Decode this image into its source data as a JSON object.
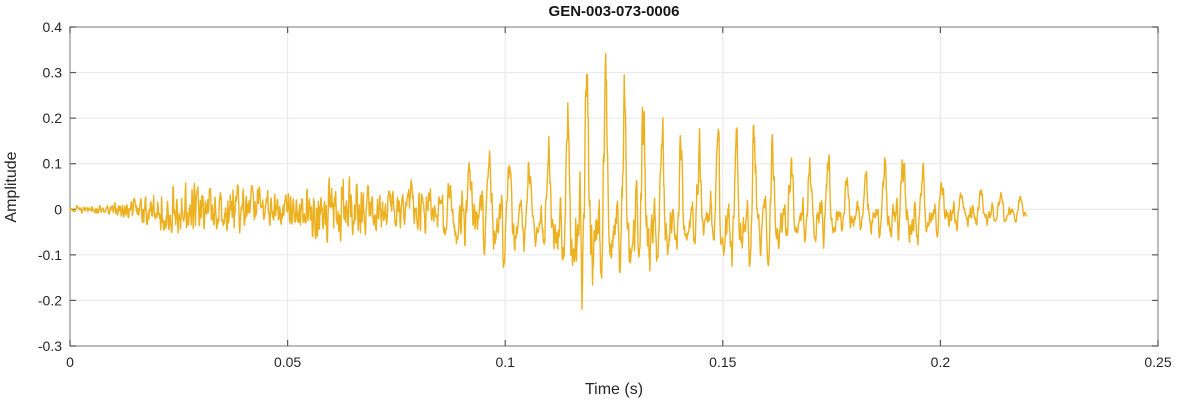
{
  "figure": {
    "title": "GEN-003-073-0006",
    "xlabel": "Time (s)",
    "ylabel": "Amplitude"
  },
  "chart_data": {
    "type": "line",
    "title": "GEN-003-073-0006",
    "xlabel": "Time (s)",
    "ylabel": "Amplitude",
    "xlim": [
      0,
      0.25
    ],
    "ylim": [
      -0.3,
      0.4
    ],
    "xticks": [
      0,
      0.05,
      0.1,
      0.15,
      0.2,
      0.25
    ],
    "xtick_labels": [
      "0",
      "0.05",
      "0.1",
      "0.15",
      "0.2",
      "0.25"
    ],
    "yticks": [
      -0.3,
      -0.2,
      -0.1,
      0,
      0.1,
      0.2,
      0.3,
      0.4
    ],
    "ytick_labels": [
      "-0.3",
      "-0.2",
      "-0.1",
      "0",
      "0.1",
      "0.2",
      "0.3",
      "0.4"
    ],
    "grid": true,
    "legend": null,
    "line_color": "#EDB120",
    "line_width": 1.4,
    "style": {
      "background": "#ffffff",
      "axes_box_color": "#8f8f8f",
      "tick_color": "#5a5a5a",
      "grid_color": "#e7e7e7",
      "text_color": "#262626",
      "title_color": "#161616"
    },
    "signal": {
      "description": "Audio-style waveform (amplitude vs time): quiet noisy onset, broadband noise growing from t=0.012 s, strong quasi-periodic burst between t=0.10 s and t=0.15 s peaking near 0.38, then a decaying oscillatory tail ending at t=0.219 s",
      "duration_s": 0.2199,
      "signal_end_time_s": 0.219,
      "peak_amplitude": 0.38,
      "peak_time_s": 0.127,
      "min_amplitude": -0.25,
      "min_time_s": 0.118,
      "pitch_hz_estimate": 228,
      "render_sample_rate_hz": 11025,
      "envelope_t": [
        0,
        0.004,
        0.008,
        0.011,
        0.014,
        0.018,
        0.022,
        0.027,
        0.032,
        0.038,
        0.044,
        0.05,
        0.056,
        0.062,
        0.068,
        0.074,
        0.08,
        0.086,
        0.092,
        0.097,
        0.102,
        0.107,
        0.112,
        0.117,
        0.122,
        0.127,
        0.132,
        0.137,
        0.142,
        0.147,
        0.152,
        0.158,
        0.164,
        0.17,
        0.178,
        0.186,
        0.194,
        0.202,
        0.209,
        0.214,
        0.219
      ],
      "envelope_pos": [
        0.008,
        0.01,
        0.015,
        0.035,
        0.045,
        0.055,
        0.06,
        0.075,
        0.06,
        0.07,
        0.08,
        0.07,
        0.075,
        0.08,
        0.095,
        0.085,
        0.1,
        0.105,
        0.11,
        0.13,
        0.16,
        0.3,
        0.37,
        0.35,
        0.37,
        0.38,
        0.375,
        0.355,
        0.375,
        0.33,
        0.24,
        0.21,
        0.19,
        0.17,
        0.19,
        0.15,
        0.13,
        0.1,
        0.08,
        0.06,
        0.04
      ],
      "envelope_neg": [
        0.008,
        0.01,
        0.015,
        0.03,
        0.045,
        0.05,
        0.055,
        0.06,
        0.055,
        0.065,
        0.09,
        0.065,
        0.07,
        0.075,
        0.085,
        0.08,
        0.09,
        0.1,
        0.12,
        0.14,
        0.17,
        0.2,
        0.22,
        0.25,
        0.215,
        0.21,
        0.2,
        0.19,
        0.2,
        0.16,
        0.145,
        0.13,
        0.135,
        0.12,
        0.1,
        0.085,
        0.09,
        0.095,
        0.06,
        0.05,
        0.03
      ]
    }
  }
}
